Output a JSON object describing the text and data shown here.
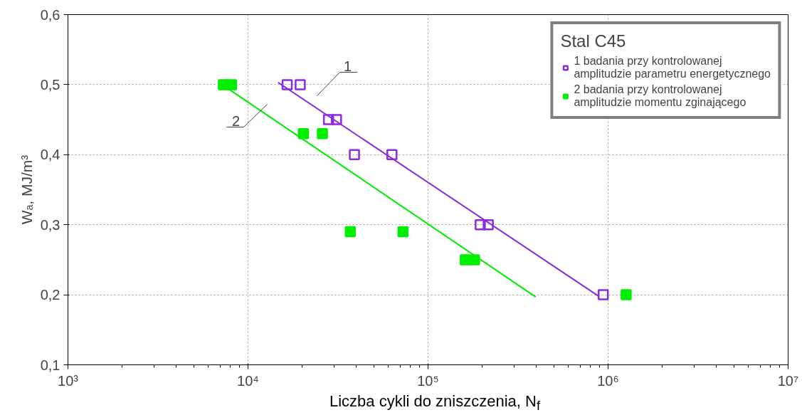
{
  "chart_data": {
    "type": "scatter",
    "xlabel": "Liczba cykli do zniszczenia, N$_{f}$",
    "ylabel": "Wₐ, MJ/m³",
    "legend_title": "Stal C45",
    "log": "x",
    "grid": true,
    "legend": "top right",
    "xlim": [
      1000,
      10000000
    ],
    "xticks": [
      {
        "value": 1000,
        "label": "10³"
      },
      {
        "value": 10000,
        "label": "10⁴"
      },
      {
        "value": 100000,
        "label": "10⁵"
      },
      {
        "value": 1000000,
        "label": "10⁶"
      },
      {
        "value": 10000000,
        "label": "10⁷"
      }
    ],
    "ylim": [
      0.1,
      0.6
    ],
    "yticks": [
      {
        "value": 0.1,
        "label": "0,1"
      },
      {
        "value": 0.2,
        "label": "0,2"
      },
      {
        "value": 0.3,
        "label": "0,3"
      },
      {
        "value": 0.4,
        "label": "0,4"
      },
      {
        "value": 0.5,
        "label": "0,5"
      },
      {
        "value": 0.6,
        "label": "0,6"
      }
    ],
    "series": [
      {
        "name": "1 badania przy kontrolowanej amplitudzie parametru energetycznego",
        "color": "#8a2be2",
        "marker": "square",
        "x": [
          16500,
          19500,
          28000,
          31000,
          39000,
          63000,
          195000,
          216000,
          940000
        ],
        "values": [
          0.5,
          0.5,
          0.45,
          0.45,
          0.4,
          0.4,
          0.3,
          0.3,
          0.2
        ]
      },
      {
        "name": "2 badania przy kontrolowanej amplitudzie momentu zginającego",
        "color": "#00ee00",
        "marker": "square",
        "x": [
          7300,
          8100,
          20300,
          25900,
          37000,
          72600,
          161000,
          181000,
          1260000
        ],
        "values": [
          0.5,
          0.5,
          0.43,
          0.43,
          0.29,
          0.29,
          0.25,
          0.25,
          0.2
        ]
      },
      {
        "type": "line",
        "color": "#8a2be2",
        "x": [
          14700,
          887000
        ],
        "values": [
          0.503,
          0.198
        ]
      },
      {
        "type": "line",
        "color": "#00ee00",
        "x": [
          6900,
          396000
        ],
        "values": [
          0.503,
          0.197
        ]
      }
    ],
    "annotations": [
      "1",
      "2"
    ]
  }
}
